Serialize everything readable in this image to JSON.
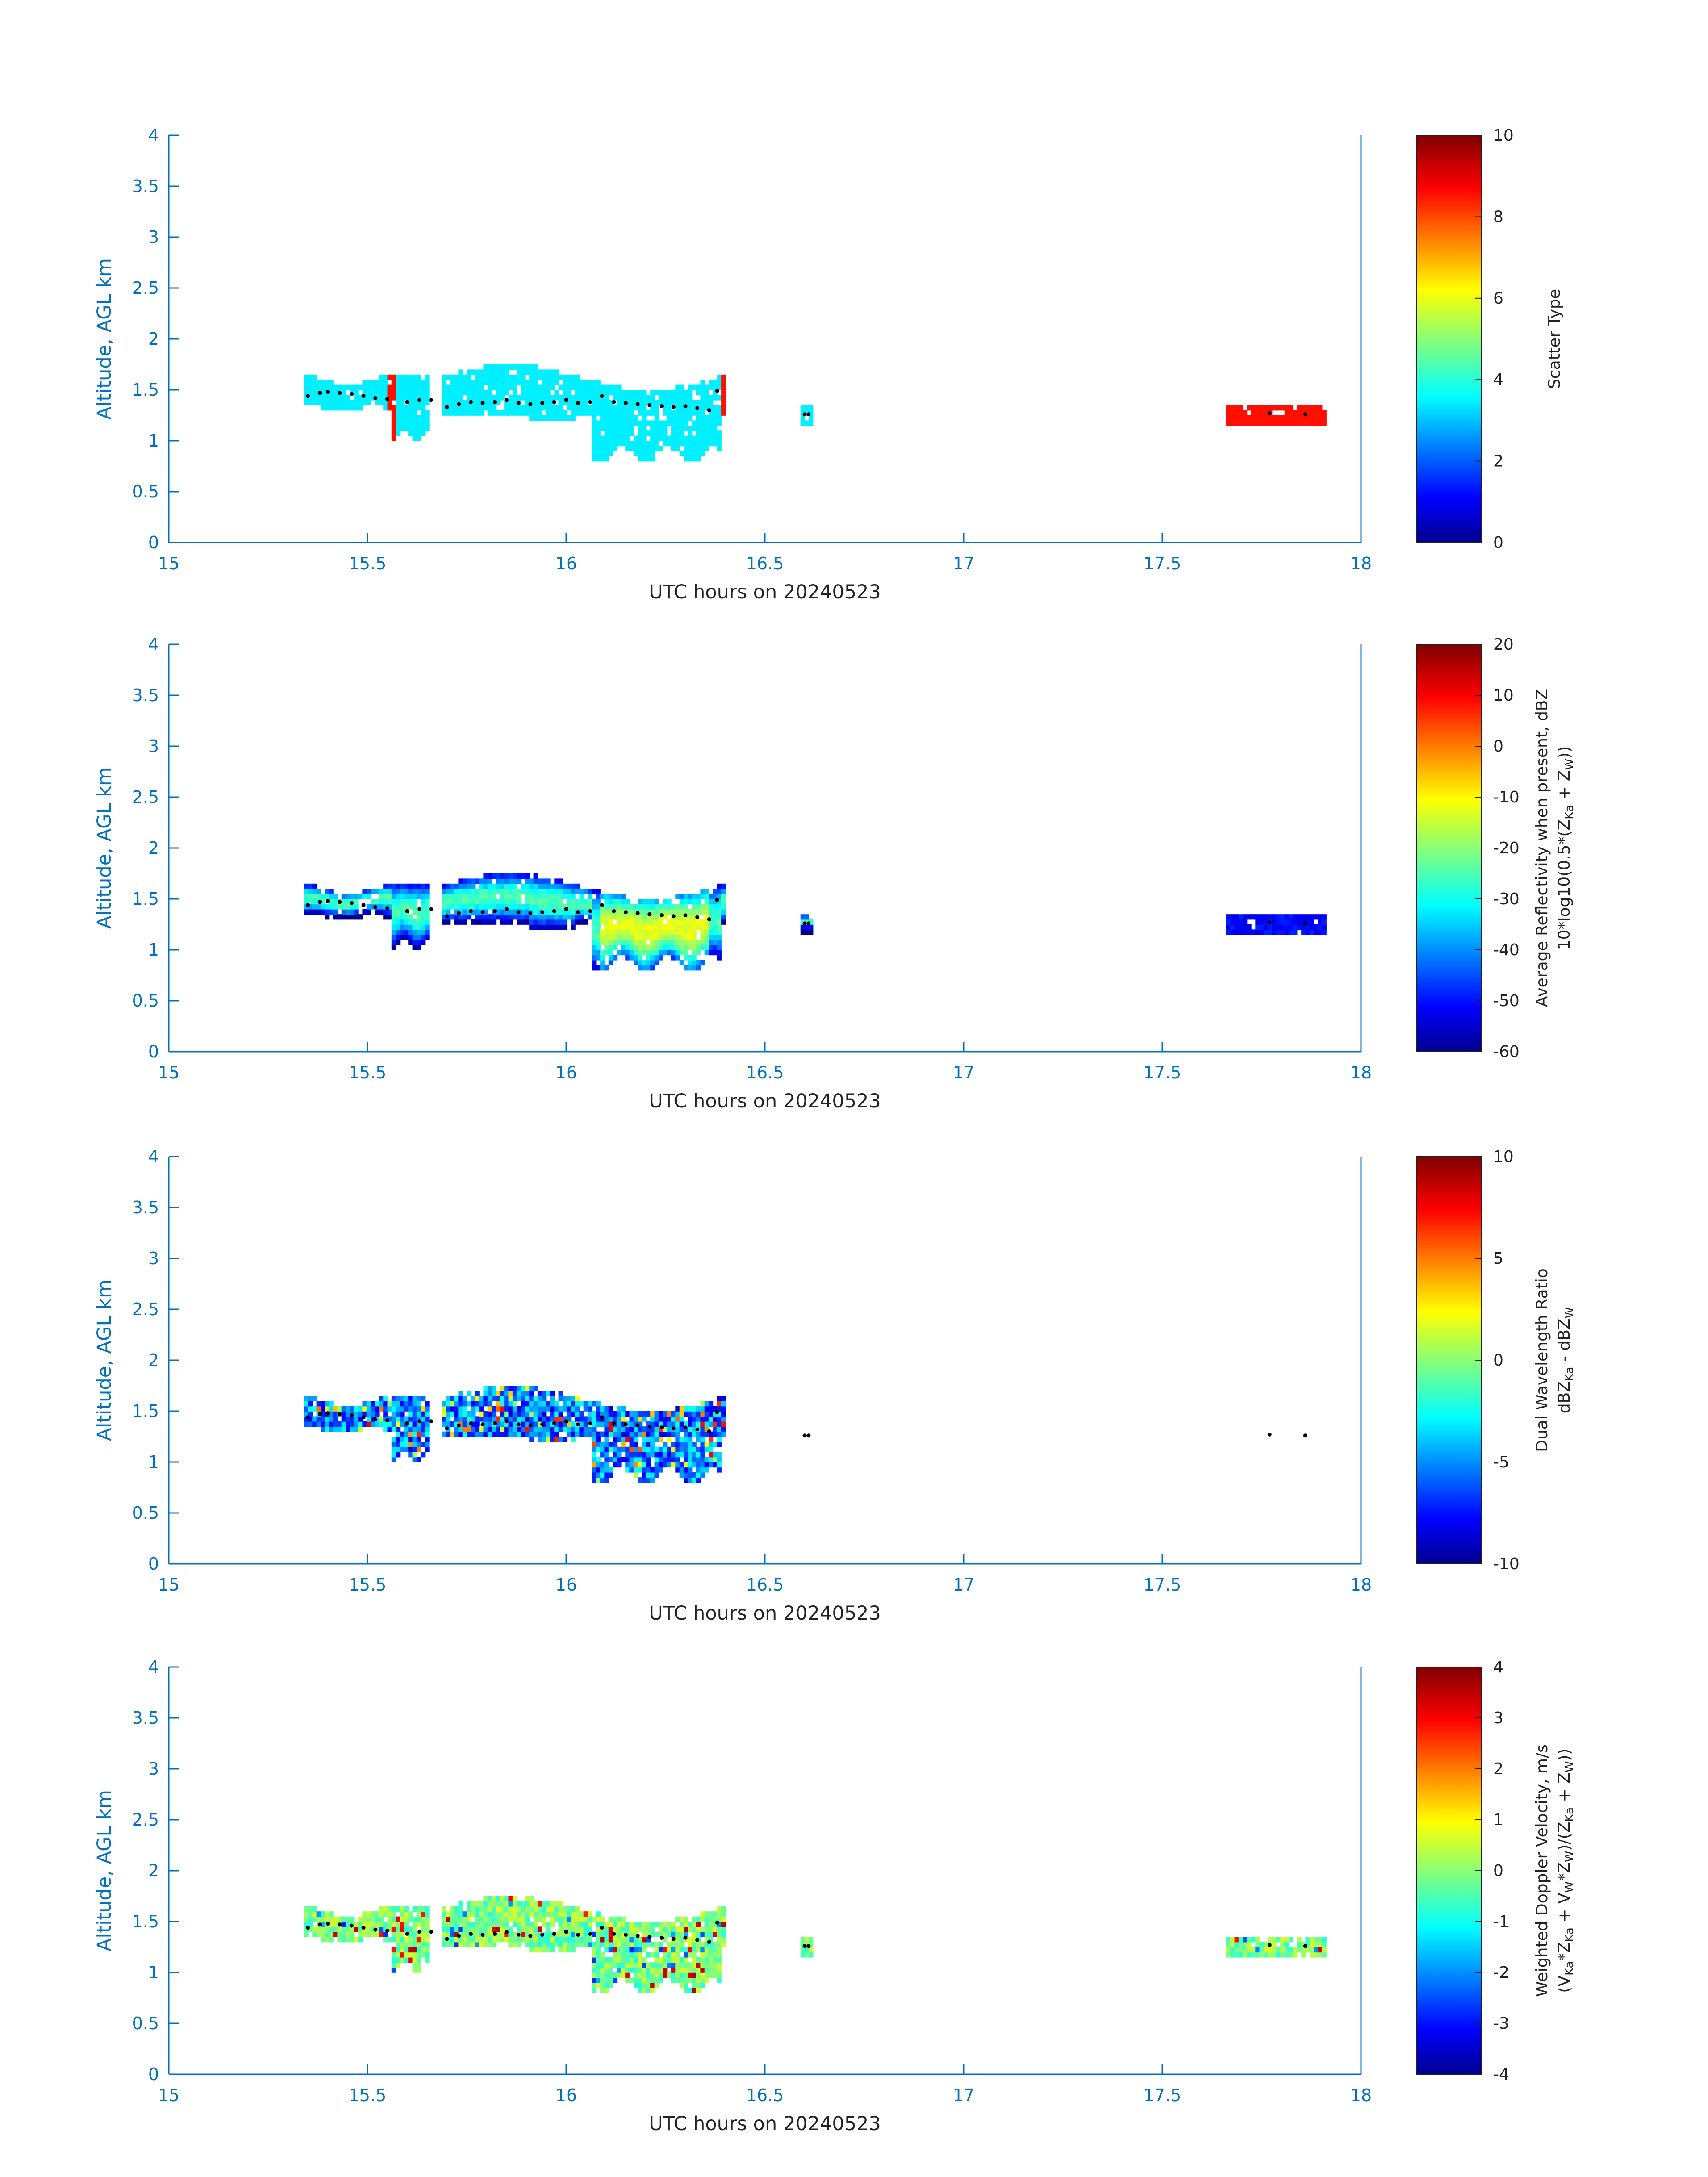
{
  "chart_data": [
    {
      "type": "heatmap",
      "ylabel": "Altitude, AGL km",
      "xlabel": "UTC hours on 20240523",
      "xlim": [
        15,
        18
      ],
      "ylim": [
        0,
        4
      ],
      "xticks": [
        "15",
        "15.5",
        "16",
        "16.5",
        "17",
        "17.5",
        "18"
      ],
      "yticks": [
        "0",
        "0.5",
        "1",
        "1.5",
        "2",
        "2.5",
        "3",
        "3.5",
        "4"
      ],
      "colorbar": {
        "label_lines": [
          "Scatter Type"
        ],
        "min": 0,
        "max": 10,
        "ticks": [
          "0",
          "2",
          "4",
          "6",
          "8",
          "10"
        ]
      },
      "colormap": "jet",
      "cloud_value": 3.6,
      "accent_value": 8.6,
      "dots": "cloud-base"
    },
    {
      "type": "heatmap",
      "ylabel": "Altitude, AGL km",
      "xlabel": "UTC hours on 20240523",
      "xlim": [
        15,
        18
      ],
      "ylim": [
        0,
        4
      ],
      "xticks": [
        "15",
        "15.5",
        "16",
        "16.5",
        "17",
        "17.5",
        "18"
      ],
      "yticks": [
        "0",
        "0.5",
        "1",
        "1.5",
        "2",
        "2.5",
        "3",
        "3.5",
        "4"
      ],
      "colorbar": {
        "label_lines": [
          "Average Reflectivity when present, dBZ",
          "10*log10(0.5*(Z",
          "Ka",
          " + Z",
          "W",
          "))"
        ],
        "min": -60,
        "max": 20,
        "ticks": [
          "-60",
          "-50",
          "-40",
          "-30",
          "-20",
          "-10",
          "0",
          "10",
          "20"
        ]
      },
      "colormap": "jet",
      "dots": "cloud-base"
    },
    {
      "type": "heatmap",
      "ylabel": "Altitude, AGL km",
      "xlabel": "UTC hours on 20240523",
      "xlim": [
        15,
        18
      ],
      "ylim": [
        0,
        4
      ],
      "xticks": [
        "15",
        "15.5",
        "16",
        "16.5",
        "17",
        "17.5",
        "18"
      ],
      "yticks": [
        "0",
        "0.5",
        "1",
        "1.5",
        "2",
        "2.5",
        "3",
        "3.5",
        "4"
      ],
      "colorbar": {
        "label_lines": [
          "Dual Wavelength Ratio",
          "dBZ",
          "Ka",
          " - dBZ",
          "W"
        ],
        "min": -10,
        "max": 10,
        "ticks": [
          "-10",
          "-5",
          "0",
          "5",
          "10"
        ]
      },
      "colormap": "jet",
      "dots": "cloud-base"
    },
    {
      "type": "heatmap",
      "ylabel": "Altitude, AGL km",
      "xlabel": "UTC hours on 20240523",
      "xlim": [
        15,
        18
      ],
      "ylim": [
        0,
        4
      ],
      "xticks": [
        "15",
        "15.5",
        "16",
        "16.5",
        "17",
        "17.5",
        "18"
      ],
      "yticks": [
        "0",
        "0.5",
        "1",
        "1.5",
        "2",
        "2.5",
        "3",
        "3.5",
        "4"
      ],
      "colorbar": {
        "label_lines": [
          "Weighted Doppler Velocity, m/s",
          "(V",
          "Ka",
          "*Z",
          "Ka",
          " + V",
          "W",
          "*Z",
          "W",
          ")/(Z",
          "Ka",
          " + Z",
          "W",
          "))"
        ],
        "min": -4,
        "max": 4,
        "ticks": [
          "-4",
          "-3",
          "-2",
          "-1",
          "0",
          "1",
          "2",
          "3",
          "4"
        ]
      },
      "colormap": "jet",
      "dots": "cloud-base"
    }
  ],
  "cloud_base_km": [
    [
      15.35,
      1.44
    ],
    [
      15.38,
      1.47
    ],
    [
      15.4,
      1.48
    ],
    [
      15.43,
      1.47
    ],
    [
      15.46,
      1.46
    ],
    [
      15.49,
      1.44
    ],
    [
      15.52,
      1.42
    ],
    [
      15.55,
      1.41
    ],
    [
      15.6,
      1.38
    ],
    [
      15.63,
      1.4
    ],
    [
      15.66,
      1.4
    ],
    [
      15.7,
      1.33
    ],
    [
      15.73,
      1.36
    ],
    [
      15.76,
      1.38
    ],
    [
      15.79,
      1.37
    ],
    [
      15.82,
      1.38
    ],
    [
      15.85,
      1.4
    ],
    [
      15.88,
      1.37
    ],
    [
      15.91,
      1.36
    ],
    [
      15.94,
      1.37
    ],
    [
      15.97,
      1.38
    ],
    [
      16.0,
      1.4
    ],
    [
      16.03,
      1.37
    ],
    [
      16.06,
      1.38
    ],
    [
      16.09,
      1.44
    ],
    [
      16.12,
      1.38
    ],
    [
      16.15,
      1.37
    ],
    [
      16.18,
      1.36
    ],
    [
      16.21,
      1.35
    ],
    [
      16.24,
      1.34
    ],
    [
      16.27,
      1.33
    ],
    [
      16.3,
      1.34
    ],
    [
      16.33,
      1.32
    ],
    [
      16.36,
      1.3
    ],
    [
      16.38,
      1.49
    ],
    [
      16.6,
      1.26
    ],
    [
      16.61,
      1.26
    ],
    [
      17.77,
      1.27
    ],
    [
      17.86,
      1.26
    ]
  ]
}
